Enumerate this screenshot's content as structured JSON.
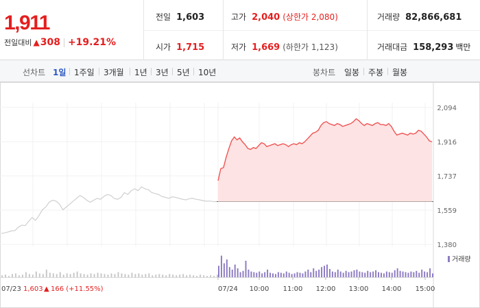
{
  "price": {
    "current": "1,911",
    "change_label": "전일대비",
    "change_arrow": "▲",
    "change": "308",
    "change_pct": "+19.21%"
  },
  "stats": {
    "prev_close": {
      "label": "전일",
      "value": "1,603"
    },
    "high": {
      "label": "고가",
      "value": "2,040",
      "limit_label": "(상한가 2,080)"
    },
    "volume": {
      "label": "거래량",
      "value": "82,866,681"
    },
    "open": {
      "label": "시가",
      "value": "1,715"
    },
    "low": {
      "label": "저가",
      "value": "1,669",
      "limit_label": "(하한가 1,123)"
    },
    "amount": {
      "label": "거래대금",
      "value": "158,293",
      "unit": "백만"
    }
  },
  "line_tabs": {
    "label": "선차트",
    "items": [
      "1일",
      "1주일",
      "3개월",
      "1년",
      "3년",
      "5년",
      "10년"
    ],
    "active": 0
  },
  "candle_tabs": {
    "label": "봉차트",
    "items": [
      "일봉",
      "주봉",
      "월봉"
    ]
  },
  "colors": {
    "up": "#e41e1e",
    "active_tab": "#2b59c3",
    "prev_line": "#cfcfcf",
    "today_line": "#f05454",
    "today_fill": "#fde3e3",
    "volume_prev": "#c8c8c8",
    "volume_today": "#8e7cc3"
  },
  "chart_data": {
    "type": "line",
    "y_ticks": [
      "2,094",
      "1,916",
      "1,737",
      "1,559",
      "1,380"
    ],
    "ylim": [
      1380,
      2094
    ],
    "prev_close_ref": 1603,
    "prev_day": {
      "date_label": "07/23",
      "close_label": "1,603",
      "change_arrow": "▲",
      "change_label": "166 (+11.55%)",
      "x": [
        0,
        1,
        2,
        3,
        4,
        5,
        6,
        7,
        8,
        9,
        10,
        11,
        12,
        13,
        14,
        15,
        16,
        17,
        18,
        19,
        20,
        21,
        22,
        23,
        24,
        25,
        26,
        27,
        28,
        29,
        30,
        31,
        32,
        33,
        34,
        35,
        36,
        37,
        38,
        39,
        40,
        41,
        42,
        43,
        44,
        45,
        46,
        47,
        48,
        49,
        50,
        51,
        52,
        53,
        54,
        55,
        56,
        57,
        58,
        59,
        60,
        61,
        62,
        63
      ],
      "values": [
        1437,
        1440,
        1445,
        1450,
        1452,
        1470,
        1480,
        1478,
        1500,
        1520,
        1505,
        1530,
        1560,
        1575,
        1600,
        1610,
        1605,
        1590,
        1560,
        1575,
        1590,
        1605,
        1620,
        1635,
        1625,
        1610,
        1600,
        1610,
        1620,
        1615,
        1630,
        1640,
        1635,
        1620,
        1615,
        1625,
        1650,
        1640,
        1660,
        1670,
        1660,
        1680,
        1670,
        1665,
        1650,
        1645,
        1640,
        1630,
        1625,
        1620,
        1628,
        1625,
        1620,
        1615,
        1612,
        1618,
        1620,
        1615,
        1612,
        1608,
        1605,
        1606,
        1603,
        1603
      ]
    },
    "today": {
      "date_label": "07/24",
      "x": [
        0,
        1,
        2,
        3,
        4,
        5,
        6,
        7,
        8,
        9,
        10,
        11,
        12,
        13,
        14,
        15,
        16,
        17,
        18,
        19,
        20,
        21,
        22,
        23,
        24,
        25,
        26,
        27,
        28,
        29,
        30,
        31,
        32,
        33,
        34,
        35,
        36,
        37,
        38,
        39,
        40,
        41,
        42,
        43,
        44,
        45,
        46,
        47,
        48,
        49,
        50,
        51,
        52,
        53,
        54,
        55,
        56,
        57,
        58,
        59,
        60,
        61,
        62,
        63,
        64,
        65,
        66,
        67,
        68,
        69,
        70,
        71,
        72,
        73,
        74,
        75,
        76,
        77,
        78,
        79
      ],
      "values": [
        1712,
        1775,
        1780,
        1835,
        1880,
        1920,
        1940,
        1925,
        1935,
        1915,
        1900,
        1880,
        1875,
        1885,
        1880,
        1895,
        1910,
        1905,
        1890,
        1895,
        1900,
        1905,
        1895,
        1900,
        1905,
        1900,
        1890,
        1900,
        1905,
        1900,
        1910,
        1905,
        1915,
        1930,
        1945,
        1960,
        1965,
        1975,
        2000,
        2015,
        2020,
        2010,
        2005,
        2000,
        2010,
        2005,
        1995,
        2000,
        2005,
        2010,
        2020,
        2035,
        2025,
        2010,
        2000,
        2010,
        2005,
        2000,
        2010,
        2015,
        2005,
        2005,
        2000,
        2010,
        1995,
        1970,
        1950,
        1955,
        1960,
        1955,
        1950,
        1960,
        1955,
        1960,
        1975,
        1970,
        1955,
        1940,
        1920,
        1915
      ]
    },
    "time_ticks": [
      "10:00",
      "11:00",
      "12:00",
      "13:00",
      "14:00",
      "15:00"
    ],
    "volume_legend": "거래량",
    "volume_prev": [
      3,
      4,
      2,
      5,
      6,
      3,
      4,
      8,
      5,
      4,
      9,
      6,
      5,
      12,
      7,
      6,
      5,
      8,
      4,
      6,
      5,
      7,
      9,
      6,
      5,
      4,
      6,
      5,
      7,
      6,
      5,
      4,
      6,
      5,
      8,
      6,
      5,
      4,
      7,
      5,
      6,
      4,
      5,
      6,
      3,
      4,
      5,
      4,
      3,
      5,
      4,
      3,
      4,
      5,
      3,
      4,
      3,
      2,
      4,
      3,
      2,
      3,
      2,
      4
    ],
    "volume_today": [
      18,
      34,
      22,
      28,
      16,
      12,
      20,
      14,
      8,
      10,
      26,
      12,
      9,
      8,
      7,
      9,
      6,
      8,
      12,
      7,
      6,
      5,
      8,
      7,
      6,
      9,
      7,
      5,
      6,
      8,
      7,
      6,
      9,
      12,
      8,
      14,
      10,
      12,
      16,
      18,
      20,
      13,
      9,
      8,
      12,
      9,
      7,
      10,
      8,
      9,
      11,
      12,
      9,
      8,
      7,
      10,
      8,
      9,
      11,
      8,
      7,
      6,
      9,
      8,
      7,
      11,
      14,
      10,
      9,
      8,
      7,
      9,
      8,
      10,
      7,
      12,
      9,
      8,
      14,
      6
    ]
  }
}
